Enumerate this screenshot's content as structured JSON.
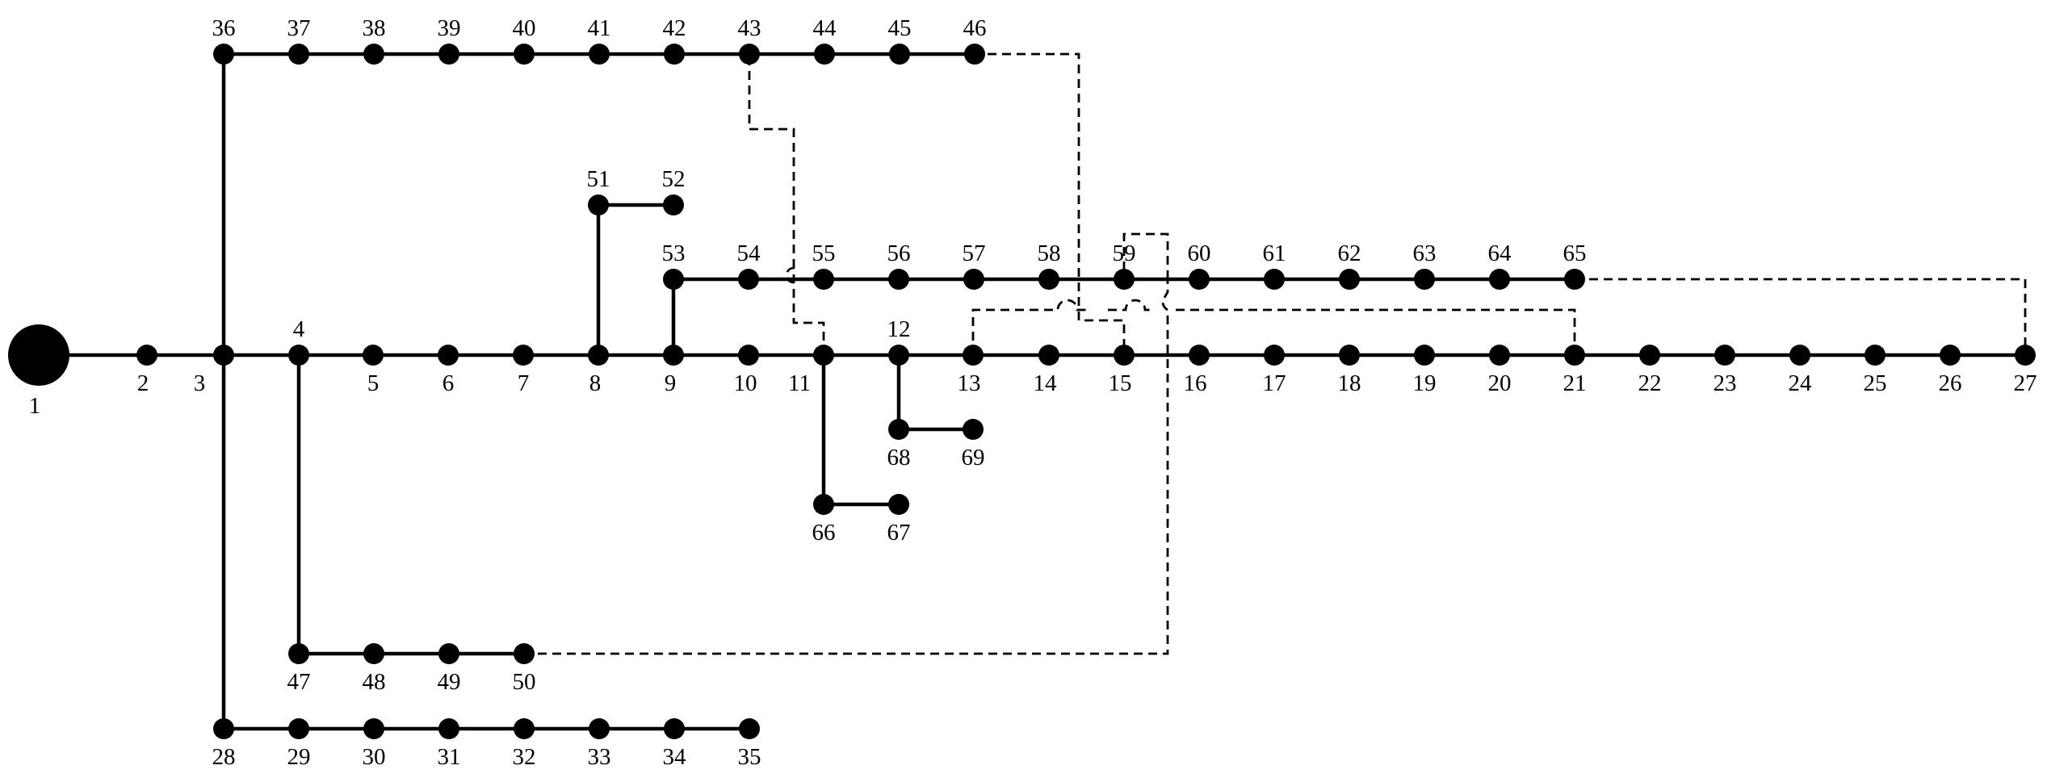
{
  "diagram": {
    "description": "",
    "colors": {
      "line": "#000000",
      "node": "#000000",
      "background": "#ffffff"
    },
    "nodes": [
      "1",
      "2",
      "3",
      "4",
      "5",
      "6",
      "7",
      "8",
      "9",
      "10",
      "11",
      "12",
      "13",
      "14",
      "15",
      "16",
      "17",
      "18",
      "19",
      "20",
      "21",
      "22",
      "23",
      "24",
      "25",
      "26",
      "27",
      "28",
      "29",
      "30",
      "31",
      "32",
      "33",
      "34",
      "35",
      "36",
      "37",
      "38",
      "39",
      "40",
      "41",
      "42",
      "43",
      "44",
      "45",
      "46",
      "47",
      "48",
      "49",
      "50",
      "51",
      "52",
      "53",
      "54",
      "55",
      "56",
      "57",
      "58",
      "59",
      "60",
      "61",
      "62",
      "63",
      "64",
      "65",
      "66",
      "67",
      "68",
      "69"
    ],
    "source_node": "1",
    "branches": [
      [
        "1",
        "2"
      ],
      [
        "2",
        "3"
      ],
      [
        "3",
        "4"
      ],
      [
        "4",
        "5"
      ],
      [
        "5",
        "6"
      ],
      [
        "6",
        "7"
      ],
      [
        "7",
        "8"
      ],
      [
        "8",
        "9"
      ],
      [
        "9",
        "10"
      ],
      [
        "10",
        "11"
      ],
      [
        "11",
        "12"
      ],
      [
        "12",
        "13"
      ],
      [
        "13",
        "14"
      ],
      [
        "14",
        "15"
      ],
      [
        "15",
        "16"
      ],
      [
        "16",
        "17"
      ],
      [
        "17",
        "18"
      ],
      [
        "18",
        "19"
      ],
      [
        "19",
        "20"
      ],
      [
        "20",
        "21"
      ],
      [
        "21",
        "22"
      ],
      [
        "22",
        "23"
      ],
      [
        "23",
        "24"
      ],
      [
        "24",
        "25"
      ],
      [
        "25",
        "26"
      ],
      [
        "26",
        "27"
      ],
      [
        "3",
        "28"
      ],
      [
        "28",
        "29"
      ],
      [
        "29",
        "30"
      ],
      [
        "30",
        "31"
      ],
      [
        "31",
        "32"
      ],
      [
        "32",
        "33"
      ],
      [
        "33",
        "34"
      ],
      [
        "34",
        "35"
      ],
      [
        "3",
        "36"
      ],
      [
        "36",
        "37"
      ],
      [
        "37",
        "38"
      ],
      [
        "38",
        "39"
      ],
      [
        "39",
        "40"
      ],
      [
        "40",
        "41"
      ],
      [
        "41",
        "42"
      ],
      [
        "42",
        "43"
      ],
      [
        "43",
        "44"
      ],
      [
        "44",
        "45"
      ],
      [
        "45",
        "46"
      ],
      [
        "4",
        "47"
      ],
      [
        "47",
        "48"
      ],
      [
        "48",
        "49"
      ],
      [
        "49",
        "50"
      ],
      [
        "8",
        "51"
      ],
      [
        "51",
        "52"
      ],
      [
        "9",
        "53"
      ],
      [
        "53",
        "54"
      ],
      [
        "54",
        "55"
      ],
      [
        "55",
        "56"
      ],
      [
        "56",
        "57"
      ],
      [
        "57",
        "58"
      ],
      [
        "58",
        "59"
      ],
      [
        "59",
        "60"
      ],
      [
        "60",
        "61"
      ],
      [
        "61",
        "62"
      ],
      [
        "62",
        "63"
      ],
      [
        "63",
        "64"
      ],
      [
        "64",
        "65"
      ],
      [
        "11",
        "66"
      ],
      [
        "66",
        "67"
      ],
      [
        "12",
        "68"
      ],
      [
        "68",
        "69"
      ]
    ],
    "tie_lines": [
      [
        "11",
        "43"
      ],
      [
        "13",
        "21"
      ],
      [
        "15",
        "46"
      ],
      [
        "50",
        "59"
      ],
      [
        "27",
        "65"
      ]
    ]
  }
}
